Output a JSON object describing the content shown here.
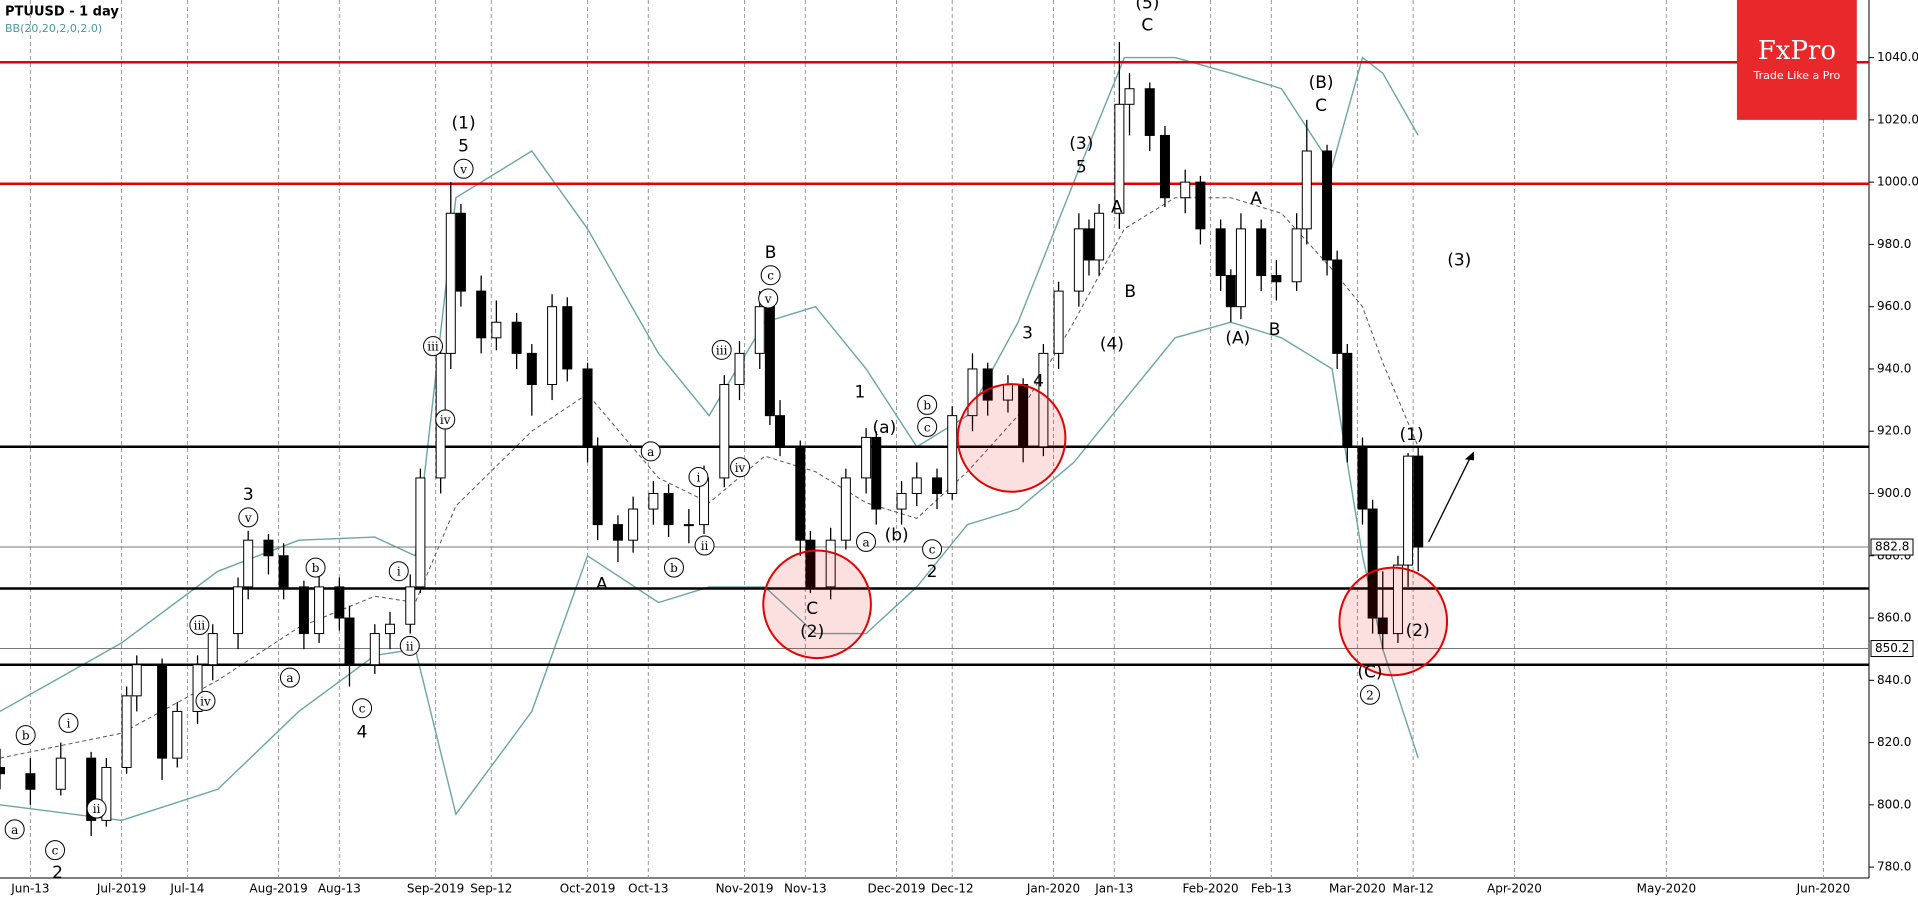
{
  "chart_data": {
    "type": "candlestick",
    "title": "PTUUSD - 1 day",
    "subtitle": "BB(20,20,2,0,2.0)",
    "logo": {
      "name": "FxPro",
      "tagline": "Trade Like a Pro"
    },
    "xlim": [
      "2019-06-07",
      "2020-06-10"
    ],
    "ylim": [
      776.5,
      1058.5
    ],
    "xticks": [
      {
        "value": "2019-06-13",
        "label": "Jun-13"
      },
      {
        "value": "2019-07-01",
        "label": "Jul-2019"
      },
      {
        "value": "2019-07-14",
        "label": "Jul-14"
      },
      {
        "value": "2019-08-01",
        "label": "Aug-2019"
      },
      {
        "value": "2019-08-13",
        "label": "Aug-13"
      },
      {
        "value": "2019-09-01",
        "label": "Sep-2019"
      },
      {
        "value": "2019-09-12",
        "label": "Sep-12"
      },
      {
        "value": "2019-10-01",
        "label": "Oct-2019"
      },
      {
        "value": "2019-10-13",
        "label": "Oct-13"
      },
      {
        "value": "2019-11-01",
        "label": "Nov-2019"
      },
      {
        "value": "2019-11-13",
        "label": "Nov-13"
      },
      {
        "value": "2019-12-01",
        "label": "Dec-2019"
      },
      {
        "value": "2019-12-12",
        "label": "Dec-12"
      },
      {
        "value": "2020-01-01",
        "label": "Jan-2020"
      },
      {
        "value": "2020-01-13",
        "label": "Jan-13"
      },
      {
        "value": "2020-02-01",
        "label": "Feb-2020"
      },
      {
        "value": "2020-02-13",
        "label": "Feb-13"
      },
      {
        "value": "2020-03-01",
        "label": "Mar-2020"
      },
      {
        "value": "2020-03-12",
        "label": "Mar-12"
      },
      {
        "value": "2020-04-01",
        "label": "Apr-2020"
      },
      {
        "value": "2020-05-01",
        "label": "May-2020"
      },
      {
        "value": "2020-06-01",
        "label": "Jun-2020"
      }
    ],
    "yticks": [
      {
        "value": 780,
        "label": "780.0"
      },
      {
        "value": 800,
        "label": "800.0"
      },
      {
        "value": 820,
        "label": "820.0"
      },
      {
        "value": 840,
        "label": "840.0"
      },
      {
        "value": 860,
        "label": "860.0"
      },
      {
        "value": 880,
        "label": "880.0"
      },
      {
        "value": 900,
        "label": "900.0"
      },
      {
        "value": 920,
        "label": "920.0"
      },
      {
        "value": 940,
        "label": "940.0"
      },
      {
        "value": 960,
        "label": "960.0"
      },
      {
        "value": 980,
        "label": "980.0"
      },
      {
        "value": 1000,
        "label": "1000.0"
      },
      {
        "value": 1020,
        "label": "1020.0"
      },
      {
        "value": 1040,
        "label": "1040.0"
      }
    ],
    "grid": true,
    "up_color": "#ffffff",
    "down_color": "#000000",
    "x": [
      "2019-06-07",
      "2019-06-13",
      "2019-06-19",
      "2019-06-25",
      "2019-06-28",
      "2019-07-02",
      "2019-07-04",
      "2019-07-09",
      "2019-07-12",
      "2019-07-16",
      "2019-07-19",
      "2019-07-24",
      "2019-07-26",
      "2019-07-30",
      "2019-08-02",
      "2019-08-06",
      "2019-08-09",
      "2019-08-13",
      "2019-08-15",
      "2019-08-20",
      "2019-08-23",
      "2019-08-27",
      "2019-08-29",
      "2019-09-02",
      "2019-09-04",
      "2019-09-06",
      "2019-09-10",
      "2019-09-13",
      "2019-09-17",
      "2019-09-20",
      "2019-09-24",
      "2019-09-27",
      "2019-10-01",
      "2019-10-03",
      "2019-10-07",
      "2019-10-10",
      "2019-10-14",
      "2019-10-17",
      "2019-10-21",
      "2019-10-24",
      "2019-10-28",
      "2019-10-31",
      "2019-11-04",
      "2019-11-06",
      "2019-11-08",
      "2019-11-12",
      "2019-11-14",
      "2019-11-18",
      "2019-11-21",
      "2019-11-25",
      "2019-11-27",
      "2019-12-02",
      "2019-12-05",
      "2019-12-09",
      "2019-12-12",
      "2019-12-16",
      "2019-12-19",
      "2019-12-23",
      "2019-12-26",
      "2019-12-30",
      "2020-01-02",
      "2020-01-06",
      "2020-01-08",
      "2020-01-10",
      "2020-01-14",
      "2020-01-16",
      "2020-01-20",
      "2020-01-23",
      "2020-01-27",
      "2020-01-30",
      "2020-02-03",
      "2020-02-05",
      "2020-02-07",
      "2020-02-11",
      "2020-02-14",
      "2020-02-18",
      "2020-02-20",
      "2020-02-24",
      "2020-02-26",
      "2020-02-28",
      "2020-03-02",
      "2020-03-04",
      "2020-03-06",
      "2020-03-09",
      "2020-03-11",
      "2020-03-13"
    ],
    "open": [
      812,
      810,
      805,
      815,
      795,
      812,
      835,
      845,
      815,
      830,
      845,
      855,
      870,
      885,
      880,
      870,
      855,
      870,
      860,
      845,
      855,
      858,
      870,
      905,
      945,
      990,
      965,
      950,
      955,
      945,
      935,
      960,
      940,
      915,
      890,
      885,
      895,
      900,
      890,
      890,
      905,
      935,
      945,
      960,
      925,
      915,
      885,
      870,
      885,
      905,
      918,
      895,
      900,
      905,
      900,
      925,
      940,
      930,
      935,
      915,
      945,
      965,
      985,
      975,
      990,
      1025,
      1030,
      1015,
      995,
      1000,
      985,
      970,
      960,
      985,
      970,
      968,
      985,
      1010,
      975,
      945,
      915,
      895,
      860,
      855,
      877,
      912
    ],
    "high": [
      818,
      815,
      820,
      817,
      815,
      838,
      848,
      847,
      833,
      848,
      858,
      873,
      888,
      887,
      884,
      872,
      874,
      873,
      864,
      858,
      862,
      874,
      908,
      948,
      1000,
      993,
      970,
      962,
      958,
      948,
      964,
      963,
      942,
      918,
      893,
      899,
      904,
      903,
      895,
      909,
      938,
      949,
      965,
      962,
      930,
      917,
      888,
      889,
      908,
      921,
      920,
      904,
      910,
      908,
      928,
      945,
      942,
      938,
      937,
      948,
      968,
      990,
      988,
      993,
      1045,
      1035,
      1032,
      1018,
      1004,
      1002,
      988,
      972,
      990,
      988,
      975,
      990,
      1020,
      1012,
      978,
      948,
      918,
      898,
      875,
      880,
      913,
      915
    ],
    "low": [
      805,
      800,
      803,
      790,
      793,
      810,
      830,
      808,
      812,
      826,
      840,
      850,
      866,
      874,
      866,
      850,
      852,
      856,
      838,
      842,
      850,
      855,
      868,
      900,
      940,
      960,
      945,
      946,
      940,
      925,
      930,
      936,
      910,
      885,
      878,
      881,
      890,
      886,
      884,
      887,
      902,
      930,
      940,
      922,
      912,
      880,
      868,
      866,
      882,
      900,
      890,
      890,
      896,
      895,
      898,
      920,
      925,
      926,
      910,
      912,
      940,
      960,
      970,
      970,
      985,
      1015,
      1010,
      992,
      990,
      980,
      965,
      955,
      956,
      965,
      962,
      965,
      980,
      970,
      940,
      910,
      890,
      855,
      850,
      852,
      870,
      875
    ],
    "close": [
      810,
      805,
      815,
      795,
      812,
      835,
      845,
      815,
      830,
      845,
      855,
      870,
      885,
      880,
      870,
      855,
      870,
      860,
      845,
      855,
      858,
      870,
      905,
      945,
      990,
      965,
      950,
      955,
      945,
      935,
      960,
      940,
      915,
      890,
      885,
      895,
      900,
      890,
      890,
      905,
      935,
      945,
      960,
      925,
      915,
      885,
      870,
      885,
      905,
      918,
      895,
      900,
      905,
      900,
      925,
      940,
      930,
      935,
      915,
      945,
      965,
      985,
      975,
      990,
      1025,
      1030,
      1015,
      995,
      1000,
      985,
      970,
      960,
      985,
      970,
      968,
      985,
      1010,
      975,
      945,
      915,
      895,
      860,
      855,
      877,
      912,
      882.8
    ],
    "bollinger": {
      "color": "#6aa5a8",
      "dates": [
        "2019-06-07",
        "2019-07-01",
        "2019-07-20",
        "2019-08-05",
        "2019-08-20",
        "2019-08-28",
        "2019-09-05",
        "2019-09-20",
        "2019-10-01",
        "2019-10-15",
        "2019-10-25",
        "2019-11-05",
        "2019-11-15",
        "2019-11-25",
        "2019-12-05",
        "2019-12-15",
        "2019-12-25",
        "2020-01-05",
        "2020-01-15",
        "2020-01-25",
        "2020-02-05",
        "2020-02-15",
        "2020-02-25",
        "2020-03-02",
        "2020-03-06",
        "2020-03-13"
      ],
      "upper": [
        830,
        852,
        875,
        885,
        886,
        880,
        995,
        1010,
        985,
        945,
        925,
        955,
        960,
        940,
        915,
        925,
        955,
        1000,
        1040,
        1040,
        1035,
        1030,
        1005,
        1040,
        1035,
        1015
      ],
      "middle": [
        815,
        823,
        840,
        857,
        867,
        865,
        896,
        920,
        932,
        905,
        897,
        912,
        907,
        897,
        892,
        907,
        925,
        955,
        985,
        995,
        995,
        990,
        972,
        960,
        942,
        915
      ],
      "lower": [
        800,
        795,
        805,
        830,
        848,
        850,
        797,
        830,
        880,
        865,
        870,
        870,
        855,
        855,
        870,
        890,
        895,
        910,
        930,
        950,
        955,
        950,
        940,
        880,
        850,
        815
      ]
    },
    "levels": [
      {
        "value": 1038.5,
        "color": "#e60000"
      },
      {
        "value": 999.5,
        "color": "#e60000"
      },
      {
        "value": 915,
        "color": "#000000"
      },
      {
        "value": 869.5,
        "color": "#000000"
      },
      {
        "value": 845,
        "color": "#000000"
      }
    ],
    "price_markers": [
      {
        "value": 882.8,
        "label": "882.8"
      },
      {
        "value": 850.2,
        "label": "850.2"
      }
    ],
    "annotations": [
      "(1)",
      "5",
      "v",
      "3",
      "v",
      "i",
      "b",
      "a",
      "c",
      "2",
      "ii",
      "iii",
      "iv",
      "b",
      "a",
      "c",
      "4",
      "i",
      "ii",
      "iii",
      "iv",
      "A",
      "a",
      "b",
      "i",
      "ii",
      "iii",
      "iv",
      "B",
      "c",
      "v",
      "C",
      "(2)",
      "1",
      "(a)",
      "a",
      "(b)",
      "b",
      "c",
      "c",
      "2",
      "3",
      "4",
      "(3)",
      "5",
      "A",
      "B",
      "(4)",
      "(5)",
      "C",
      "A",
      "(A)",
      "B",
      "(B)",
      "C",
      "(3)",
      "(1)",
      "(2)",
      "(C)",
      "2"
    ]
  }
}
